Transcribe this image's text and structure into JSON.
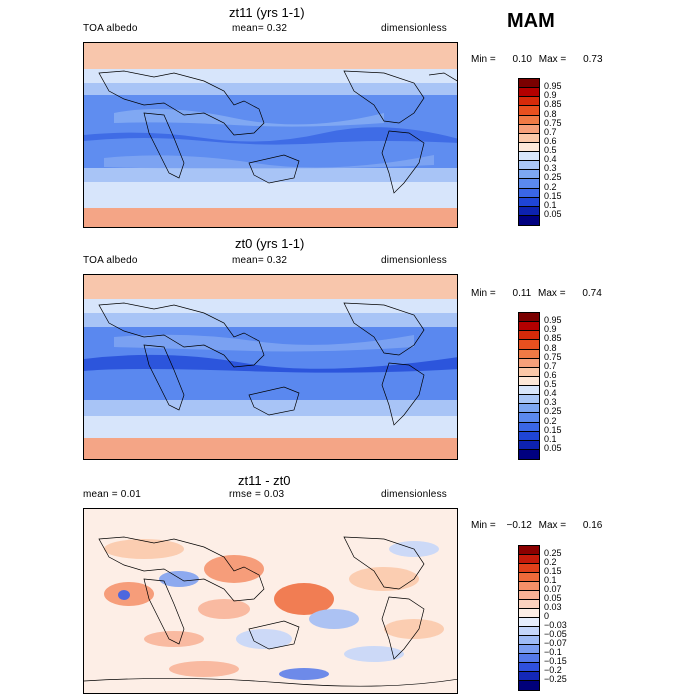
{
  "season": "MAM",
  "panels": [
    {
      "title": "zt11 (yrs 1-1)",
      "left_label": "TOA albedo",
      "center_label": "mean=   0.32",
      "right_label": "dimensionless",
      "min_label": "Min =",
      "min_value": "0.10",
      "max_label": "Max =",
      "max_value": "0.73",
      "colorbar_labels": [
        "0.95",
        "0.9",
        "0.85",
        "0.8",
        "0.75",
        "0.7",
        "0.6",
        "0.5",
        "0.4",
        "0.3",
        "0.25",
        "0.2",
        "0.15",
        "0.1",
        "0.05"
      ],
      "colorbar_colors": [
        "#7a0000",
        "#b30000",
        "#d62a0a",
        "#e8501f",
        "#f07a45",
        "#f6a07a",
        "#fbc8a8",
        "#fde8d8",
        "#d8e6fb",
        "#aac7f7",
        "#7da7f2",
        "#5b89ee",
        "#3a66e6",
        "#1f45d6",
        "#0d22b0",
        "#000080"
      ]
    },
    {
      "title": "zt0 (yrs 1-1)",
      "left_label": "TOA albedo",
      "center_label": "mean=   0.32",
      "right_label": "dimensionless",
      "min_label": "Min =",
      "min_value": "0.11",
      "max_label": "Max =",
      "max_value": "0.74",
      "colorbar_labels": [
        "0.95",
        "0.9",
        "0.85",
        "0.8",
        "0.75",
        "0.7",
        "0.6",
        "0.5",
        "0.4",
        "0.3",
        "0.25",
        "0.2",
        "0.15",
        "0.1",
        "0.05"
      ],
      "colorbar_colors": [
        "#7a0000",
        "#b30000",
        "#d62a0a",
        "#e8501f",
        "#f07a45",
        "#f6a07a",
        "#fbc8a8",
        "#fde8d8",
        "#d8e6fb",
        "#aac7f7",
        "#7da7f2",
        "#5b89ee",
        "#3a66e6",
        "#1f45d6",
        "#0d22b0",
        "#000080"
      ]
    },
    {
      "title": "zt11 - zt0",
      "left_label": "mean =    0.01",
      "center_label": "rmse =    0.03",
      "right_label": "dimensionless",
      "min_label": "Min =",
      "min_value": "−0.12",
      "max_label": "Max =",
      "max_value": "0.16",
      "colorbar_labels": [
        "0.25",
        "0.2",
        "0.15",
        "0.1",
        "0.07",
        "0.05",
        "0.03",
        "0",
        "−0.03",
        "−0.05",
        "−0.07",
        "−0.1",
        "−0.15",
        "−0.2",
        "−0.25"
      ],
      "colorbar_colors": [
        "#8b0000",
        "#c41a0a",
        "#e0401a",
        "#ef6a3a",
        "#f59068",
        "#f9b295",
        "#fcd2bf",
        "#fdeee6",
        "#e6eefd",
        "#c4d6fb",
        "#9ebbf6",
        "#7a9df1",
        "#5479ea",
        "#2f50dd",
        "#1428b8",
        "#00007a"
      ]
    }
  ]
}
